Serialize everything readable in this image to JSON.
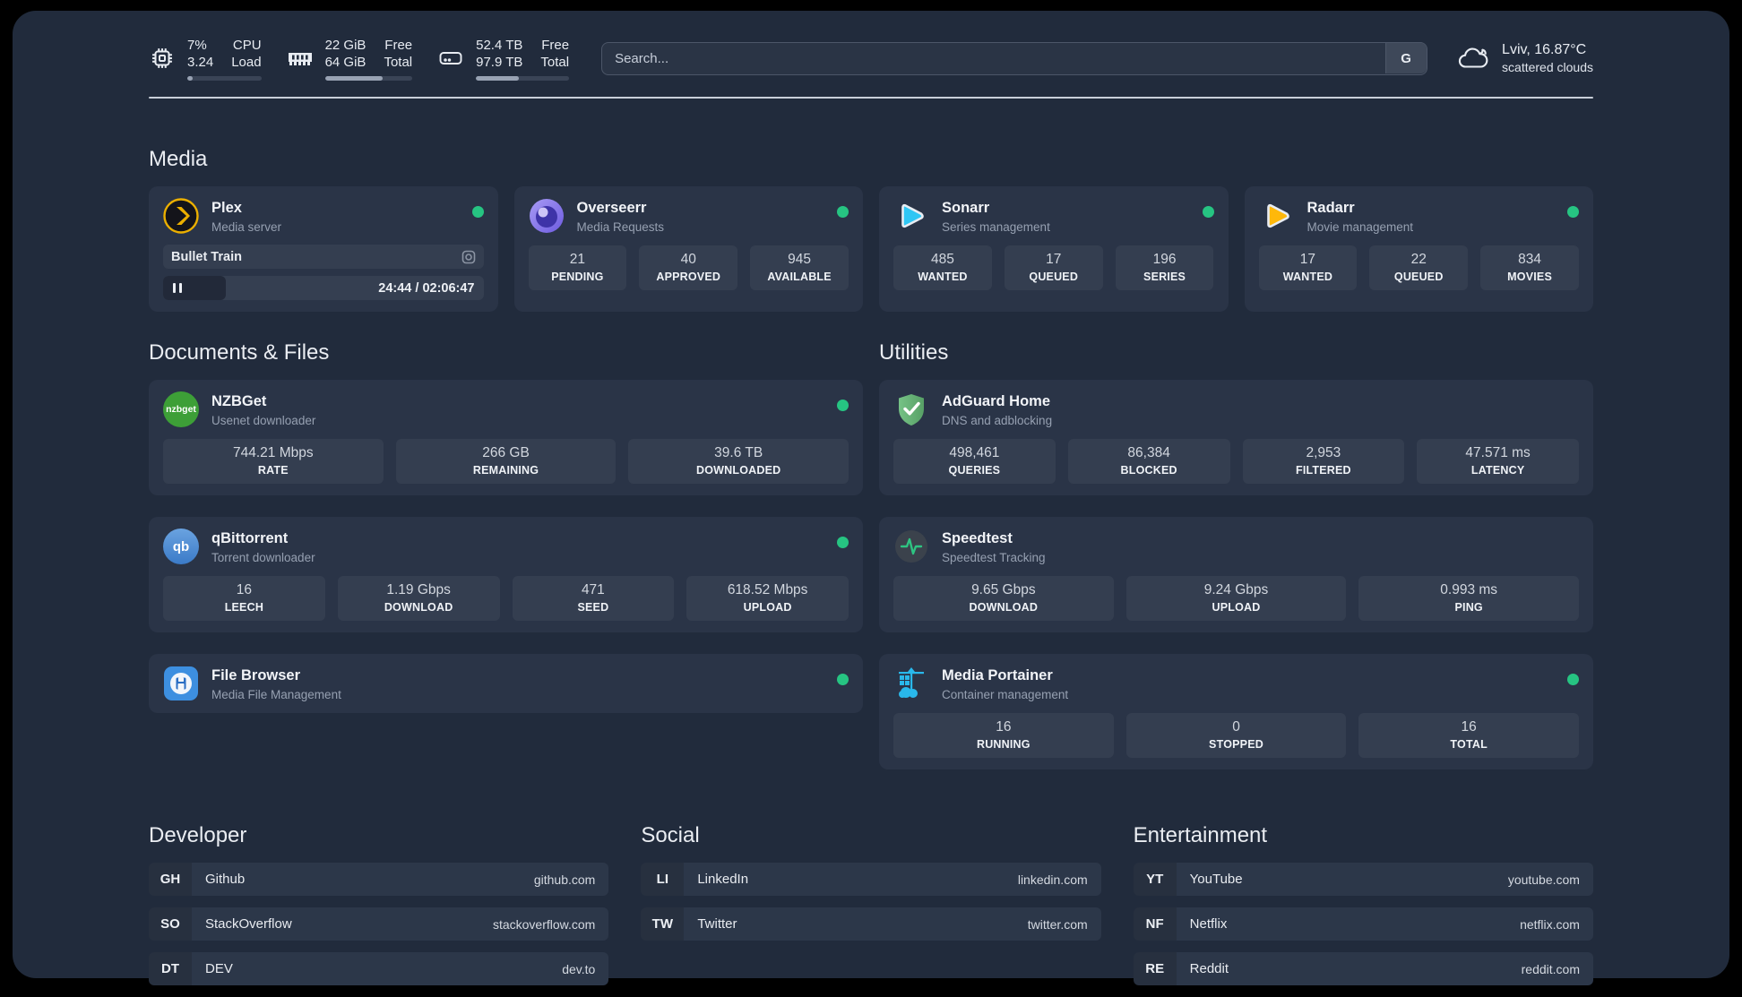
{
  "header": {
    "metrics": [
      {
        "icon": "cpu",
        "value_top": "7%",
        "value_bottom": "3.24",
        "label_top": "CPU",
        "label_bottom": "Load",
        "progress": 7
      },
      {
        "icon": "memory",
        "value_top": "22 GiB",
        "value_bottom": "64 GiB",
        "label_top": "Free",
        "label_bottom": "Total",
        "progress": 66
      },
      {
        "icon": "disk",
        "value_top": "52.4 TB",
        "value_bottom": "97.9 TB",
        "label_top": "Free",
        "label_bottom": "Total",
        "progress": 46
      }
    ],
    "search": {
      "placeholder": "Search...",
      "button_label": "G"
    },
    "weather": {
      "location": "Lviv, 16.87°C",
      "condition": "scattered clouds"
    }
  },
  "sections": {
    "media": {
      "title": "Media",
      "plex": {
        "name": "Plex",
        "description": "Media server",
        "status": "online",
        "now_playing": {
          "title": "Bullet Train",
          "time_display": "24:44 / 02:06:47",
          "progress_percent": 19.5
        }
      },
      "overseerr": {
        "name": "Overseerr",
        "description": "Media Requests",
        "status": "online",
        "stats": [
          {
            "value": "21",
            "label": "PENDING"
          },
          {
            "value": "40",
            "label": "APPROVED"
          },
          {
            "value": "945",
            "label": "AVAILABLE"
          }
        ]
      },
      "sonarr": {
        "name": "Sonarr",
        "description": "Series management",
        "status": "online",
        "stats": [
          {
            "value": "485",
            "label": "WANTED"
          },
          {
            "value": "17",
            "label": "QUEUED"
          },
          {
            "value": "196",
            "label": "SERIES"
          }
        ]
      },
      "radarr": {
        "name": "Radarr",
        "description": "Movie management",
        "status": "online",
        "stats": [
          {
            "value": "17",
            "label": "WANTED"
          },
          {
            "value": "22",
            "label": "QUEUED"
          },
          {
            "value": "834",
            "label": "MOVIES"
          }
        ]
      }
    },
    "documents": {
      "title": "Documents & Files",
      "nzbget": {
        "name": "NZBGet",
        "description": "Usenet downloader",
        "status": "online",
        "logo_text": "nzbget",
        "stats": [
          {
            "value": "744.21 Mbps",
            "label": "RATE"
          },
          {
            "value": "266 GB",
            "label": "REMAINING"
          },
          {
            "value": "39.6 TB",
            "label": "DOWNLOADED"
          }
        ]
      },
      "qbittorrent": {
        "name": "qBittorrent",
        "description": "Torrent downloader",
        "status": "online",
        "logo_text": "qb",
        "stats": [
          {
            "value": "16",
            "label": "LEECH"
          },
          {
            "value": "1.19 Gbps",
            "label": "DOWNLOAD"
          },
          {
            "value": "471",
            "label": "SEED"
          },
          {
            "value": "618.52 Mbps",
            "label": "UPLOAD"
          }
        ]
      },
      "filebrowser": {
        "name": "File Browser",
        "description": "Media File Management",
        "status": "online"
      }
    },
    "utilities": {
      "title": "Utilities",
      "adguard": {
        "name": "AdGuard Home",
        "description": "DNS and adblocking",
        "stats": [
          {
            "value": "498,461",
            "label": "QUERIES"
          },
          {
            "value": "86,384",
            "label": "BLOCKED"
          },
          {
            "value": "2,953",
            "label": "FILTERED"
          },
          {
            "value": "47.571 ms",
            "label": "LATENCY"
          }
        ]
      },
      "speedtest": {
        "name": "Speedtest",
        "description": "Speedtest Tracking",
        "stats": [
          {
            "value": "9.65 Gbps",
            "label": "DOWNLOAD"
          },
          {
            "value": "9.24 Gbps",
            "label": "UPLOAD"
          },
          {
            "value": "0.993 ms",
            "label": "PING"
          }
        ]
      },
      "portainer": {
        "name": "Media Portainer",
        "description": "Container management",
        "status": "online",
        "stats": [
          {
            "value": "16",
            "label": "RUNNING"
          },
          {
            "value": "0",
            "label": "STOPPED"
          },
          {
            "value": "16",
            "label": "TOTAL"
          }
        ]
      }
    }
  },
  "bookmarks": [
    {
      "title": "Developer",
      "items": [
        {
          "abbr": "GH",
          "name": "Github",
          "url": "github.com"
        },
        {
          "abbr": "SO",
          "name": "StackOverflow",
          "url": "stackoverflow.com"
        },
        {
          "abbr": "DT",
          "name": "DEV",
          "url": "dev.to"
        }
      ]
    },
    {
      "title": "Social",
      "items": [
        {
          "abbr": "LI",
          "name": "LinkedIn",
          "url": "linkedin.com"
        },
        {
          "abbr": "TW",
          "name": "Twitter",
          "url": "twitter.com"
        }
      ]
    },
    {
      "title": "Entertainment",
      "items": [
        {
          "abbr": "YT",
          "name": "YouTube",
          "url": "youtube.com"
        },
        {
          "abbr": "NF",
          "name": "Netflix",
          "url": "netflix.com"
        },
        {
          "abbr": "RE",
          "name": "Reddit",
          "url": "reddit.com"
        }
      ]
    }
  ],
  "colors": {
    "status_online": "#26C482",
    "panel_bg": "#212B3C",
    "card_bg": "#2A3447",
    "plex_accent": "#EBAF00",
    "sonarr_accent": "#2FC6F4",
    "radarr_accent": "#FFB80A",
    "portainer_accent": "#29B8EB"
  }
}
